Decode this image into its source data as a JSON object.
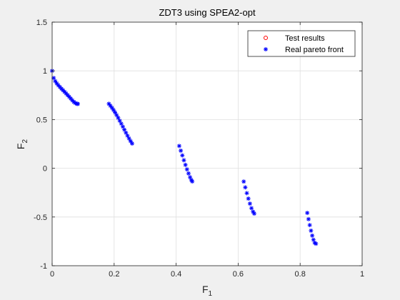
{
  "chart_data": {
    "type": "scatter",
    "title": "ZDT3 using SPEA2-opt",
    "xlabel": {
      "main": "F",
      "sub": "1"
    },
    "ylabel": {
      "main": "F",
      "sub": "2"
    },
    "xlim": [
      0,
      1
    ],
    "ylim": [
      -1,
      1.5
    ],
    "xticks": [
      0,
      0.2,
      0.4,
      0.6,
      0.8,
      1
    ],
    "xtick_labels": [
      "0",
      "0.2",
      "0.4",
      "0.6",
      "0.8",
      "1"
    ],
    "yticks": [
      -1,
      -0.5,
      0,
      0.5,
      1,
      1.5
    ],
    "ytick_labels": [
      "-1",
      "-0.5",
      "0",
      "0.5",
      "1",
      "1.5"
    ],
    "grid": true,
    "legend_position": "top-right",
    "series": [
      {
        "name": "Test results",
        "marker": "circle",
        "color": "#ff0000",
        "points": []
      },
      {
        "name": "Real pareto front",
        "marker": "asterisk",
        "color": "#0000ff",
        "points": [
          [
            0.0,
            1.0
          ],
          [
            0.005,
            0.927
          ],
          [
            0.01,
            0.895
          ],
          [
            0.015,
            0.871
          ],
          [
            0.02,
            0.852
          ],
          [
            0.025,
            0.834
          ],
          [
            0.03,
            0.817
          ],
          [
            0.035,
            0.801
          ],
          [
            0.04,
            0.785
          ],
          [
            0.045,
            0.768
          ],
          [
            0.05,
            0.751
          ],
          [
            0.055,
            0.734
          ],
          [
            0.06,
            0.716
          ],
          [
            0.065,
            0.698
          ],
          [
            0.07,
            0.681
          ],
          [
            0.075,
            0.669
          ],
          [
            0.08,
            0.662
          ],
          [
            0.083,
            0.661
          ],
          [
            0.183,
            0.662
          ],
          [
            0.188,
            0.642
          ],
          [
            0.193,
            0.621
          ],
          [
            0.198,
            0.598
          ],
          [
            0.203,
            0.573
          ],
          [
            0.208,
            0.546
          ],
          [
            0.213,
            0.518
          ],
          [
            0.218,
            0.488
          ],
          [
            0.223,
            0.458
          ],
          [
            0.228,
            0.427
          ],
          [
            0.233,
            0.396
          ],
          [
            0.238,
            0.365
          ],
          [
            0.243,
            0.335
          ],
          [
            0.248,
            0.306
          ],
          [
            0.253,
            0.279
          ],
          [
            0.258,
            0.254
          ],
          [
            0.41,
            0.229
          ],
          [
            0.415,
            0.181
          ],
          [
            0.42,
            0.132
          ],
          [
            0.425,
            0.083
          ],
          [
            0.43,
            0.035
          ],
          [
            0.435,
            -0.011
          ],
          [
            0.44,
            -0.053
          ],
          [
            0.445,
            -0.092
          ],
          [
            0.449,
            -0.12
          ],
          [
            0.452,
            -0.135
          ],
          [
            0.618,
            -0.136
          ],
          [
            0.623,
            -0.196
          ],
          [
            0.628,
            -0.255
          ],
          [
            0.633,
            -0.311
          ],
          [
            0.638,
            -0.363
          ],
          [
            0.643,
            -0.409
          ],
          [
            0.648,
            -0.445
          ],
          [
            0.652,
            -0.465
          ],
          [
            0.823,
            -0.458
          ],
          [
            0.827,
            -0.522
          ],
          [
            0.831,
            -0.583
          ],
          [
            0.835,
            -0.64
          ],
          [
            0.839,
            -0.691
          ],
          [
            0.843,
            -0.734
          ],
          [
            0.847,
            -0.765
          ],
          [
            0.851,
            -0.774
          ]
        ]
      }
    ]
  }
}
